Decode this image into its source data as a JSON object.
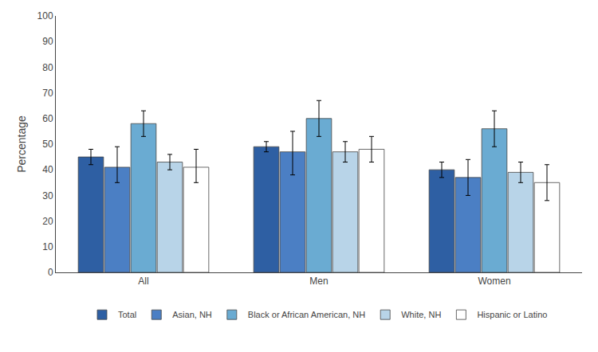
{
  "chart_data": {
    "type": "bar",
    "categories": [
      "All",
      "Men",
      "Women"
    ],
    "series": [
      {
        "name": "Total",
        "color": "#2e5fa3",
        "values": [
          45,
          49,
          40
        ],
        "error_upper": [
          3,
          2,
          3
        ],
        "error_lower": [
          3,
          2,
          3
        ]
      },
      {
        "name": "Asian, NH",
        "color": "#4b7fc4",
        "values": [
          41,
          47,
          37
        ],
        "error_upper": [
          8,
          8,
          7
        ],
        "error_lower": [
          6,
          9,
          7
        ]
      },
      {
        "name": "Black or African American, NH",
        "color": "#6aabd2",
        "values": [
          58,
          60,
          56
        ],
        "error_upper": [
          5,
          7,
          7
        ],
        "error_lower": [
          5,
          7,
          7
        ]
      },
      {
        "name": "White, NH",
        "color": "#b8d4e8",
        "values": [
          43,
          47,
          39
        ],
        "error_upper": [
          3,
          4,
          4
        ],
        "error_lower": [
          3,
          4,
          4
        ]
      },
      {
        "name": "Hispanic or Latino",
        "color": "#ffffff",
        "values": [
          41,
          48,
          35
        ],
        "error_upper": [
          7,
          5,
          7
        ],
        "error_lower": [
          6,
          5,
          7
        ]
      }
    ],
    "ylabel": "Percentage",
    "ylim": [
      0,
      100
    ],
    "yticks": [
      0,
      10,
      20,
      30,
      40,
      50,
      60,
      70,
      80,
      90,
      100
    ],
    "grid": false,
    "legend": "bottom"
  }
}
